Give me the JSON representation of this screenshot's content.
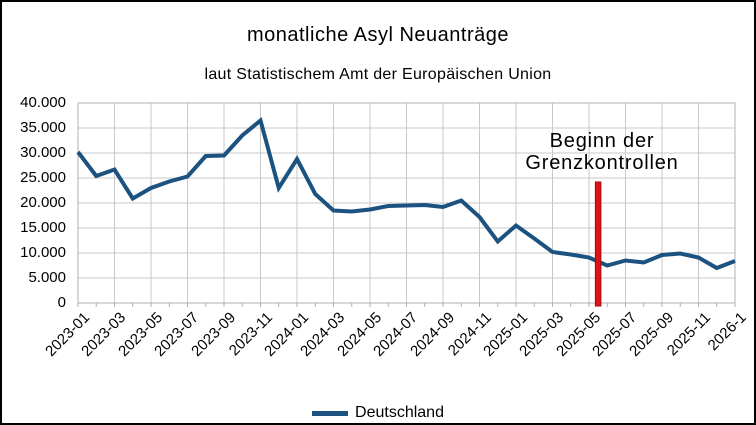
{
  "colors": {
    "line": "#1b5280",
    "grid": "#c9c9c9",
    "axis": "#b0b0b0",
    "marker_red": "#df1216",
    "marker_red_border": "#9b0f0f",
    "text": "#000000"
  },
  "legend": {
    "label": "Deutschland"
  },
  "annotation": {
    "line1": "Beginn der",
    "line2": "Grenzkontrollen"
  },
  "chart_data": {
    "type": "line",
    "title": "monatliche Asyl Neuanträge",
    "subtitle": "laut Statistischem Amt der Europäischen Union",
    "x": [
      "2023-01",
      "2023-02",
      "2023-03",
      "2023-04",
      "2023-05",
      "2023-06",
      "2023-07",
      "2023-08",
      "2023-09",
      "2023-10",
      "2023-11",
      "2023-12",
      "2024-01",
      "2024-02",
      "2024-03",
      "2024-04",
      "2024-05",
      "2024-06",
      "2024-07",
      "2024-08",
      "2024-09",
      "2024-10",
      "2024-11",
      "2024-12",
      "2025-01",
      "2025-02",
      "2025-03",
      "2025-04",
      "2025-05",
      "2025-06",
      "2025-07",
      "2025-08",
      "2025-09",
      "2025-10",
      "2025-11",
      "2025-12",
      "2026-01"
    ],
    "x_tick_labels": [
      "2023-01",
      "2023-03",
      "2023-05",
      "2023-07",
      "2023-09",
      "2023-11",
      "2024-01",
      "2024-03",
      "2024-05",
      "2024-07",
      "2024-09",
      "2024-11",
      "2025-01",
      "2025-03",
      "2025-05",
      "2025-07",
      "2025-09",
      "2025-11",
      "2026-1"
    ],
    "series": [
      {
        "name": "Deutschland",
        "color": "#1b5280",
        "values": [
          30200,
          25400,
          26700,
          20900,
          23000,
          24300,
          25300,
          29400,
          29500,
          33500,
          36500,
          23000,
          28800,
          21800,
          18500,
          18300,
          18700,
          19400,
          19500,
          19600,
          19200,
          20500,
          17200,
          12300,
          15500,
          12900,
          10200,
          9700,
          9100,
          7500,
          8500,
          8100,
          9600,
          9900,
          9100,
          7000,
          8400
        ]
      }
    ],
    "ylim": [
      0,
      40000
    ],
    "y_tick_step": 5000,
    "y_tick_labels": [
      "40.000",
      "35.000",
      "30.000",
      "25.000",
      "20.000",
      "15.000",
      "10.000",
      "5.000",
      "0"
    ],
    "grid": true,
    "legend_position": "bottom",
    "annotation": {
      "text_lines": [
        "Beginn der",
        "Grenzkontrollen"
      ],
      "marker_between_months": [
        "2025-05",
        "2025-06"
      ],
      "marker_color": "#df1216"
    }
  }
}
